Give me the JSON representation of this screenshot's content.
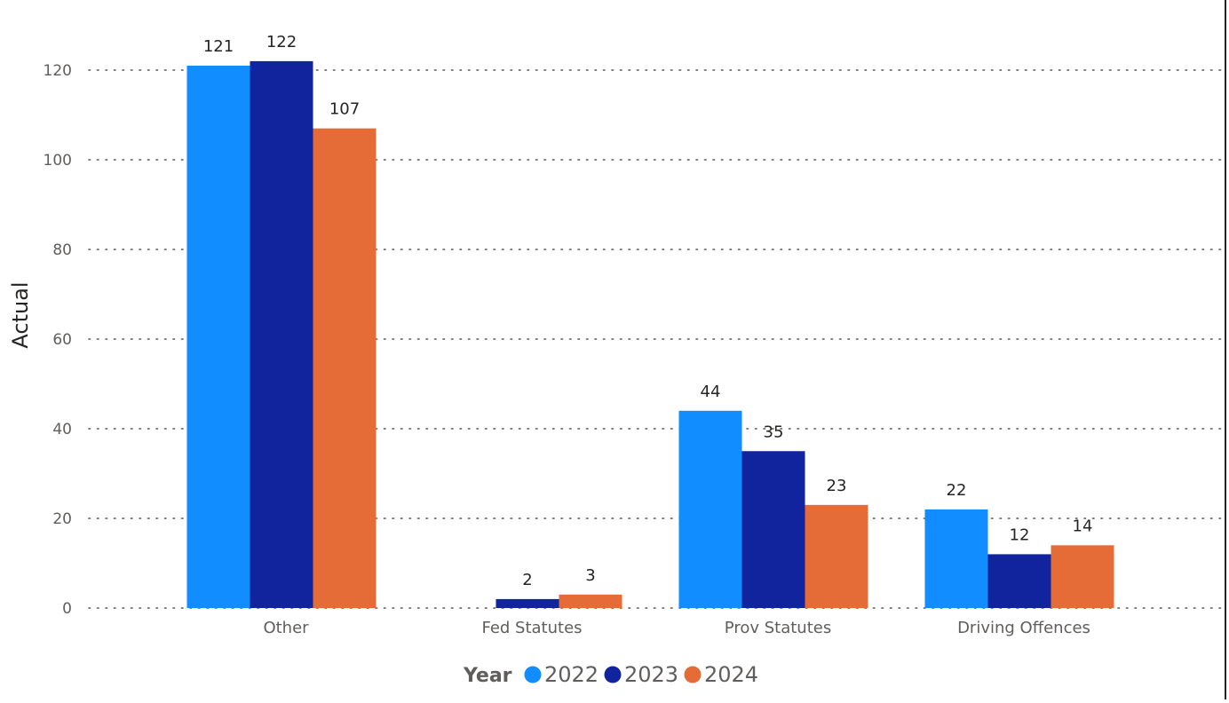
{
  "chart_data": {
    "type": "bar",
    "categories": [
      "Other",
      "Fed Statutes",
      "Prov Statutes",
      "Driving Offences"
    ],
    "series": [
      {
        "name": "2022",
        "color": "#118dff",
        "values": [
          121,
          null,
          44,
          22
        ]
      },
      {
        "name": "2023",
        "color": "#12239e",
        "values": [
          122,
          2,
          35,
          12
        ]
      },
      {
        "name": "2024",
        "color": "#e66c37",
        "values": [
          107,
          3,
          23,
          14
        ]
      }
    ],
    "ylabel": "Actual",
    "xlabel": "",
    "ylim": [
      0,
      120
    ],
    "yticks": [
      "0",
      "20",
      "40",
      "60",
      "80",
      "100",
      "120"
    ],
    "grid": true,
    "legend": {
      "title": "Year",
      "position": "bottom-center"
    }
  }
}
